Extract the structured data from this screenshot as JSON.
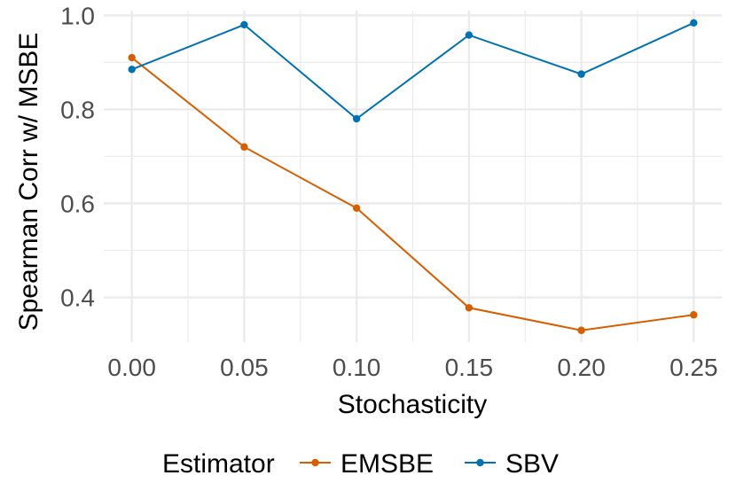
{
  "chart_data": {
    "type": "line",
    "title": "",
    "xlabel": "Stochasticity",
    "ylabel": "Spearman Corr w/ MSBE",
    "x": [
      0.0,
      0.05,
      0.1,
      0.15,
      0.2,
      0.25
    ],
    "x_tick_labels": [
      "0.00",
      "0.05",
      "0.10",
      "0.15",
      "0.20",
      "0.25"
    ],
    "y_ticks": [
      0.4,
      0.6,
      0.8,
      1.0
    ],
    "y_tick_labels": [
      "0.4",
      "0.6",
      "0.8",
      "1.0"
    ],
    "xlim": [
      -0.0125,
      0.2625
    ],
    "ylim": [
      0.305,
      1.01
    ],
    "grid": true,
    "legend": {
      "title": "Estimator",
      "position": "bottom"
    },
    "series": [
      {
        "name": "EMSBE",
        "color": "#D55E00",
        "values": [
          0.91,
          0.72,
          0.59,
          0.378,
          0.33,
          0.363
        ]
      },
      {
        "name": "SBV",
        "color": "#0072B2",
        "values": [
          0.885,
          0.98,
          0.78,
          0.958,
          0.875,
          0.984
        ]
      }
    ]
  }
}
